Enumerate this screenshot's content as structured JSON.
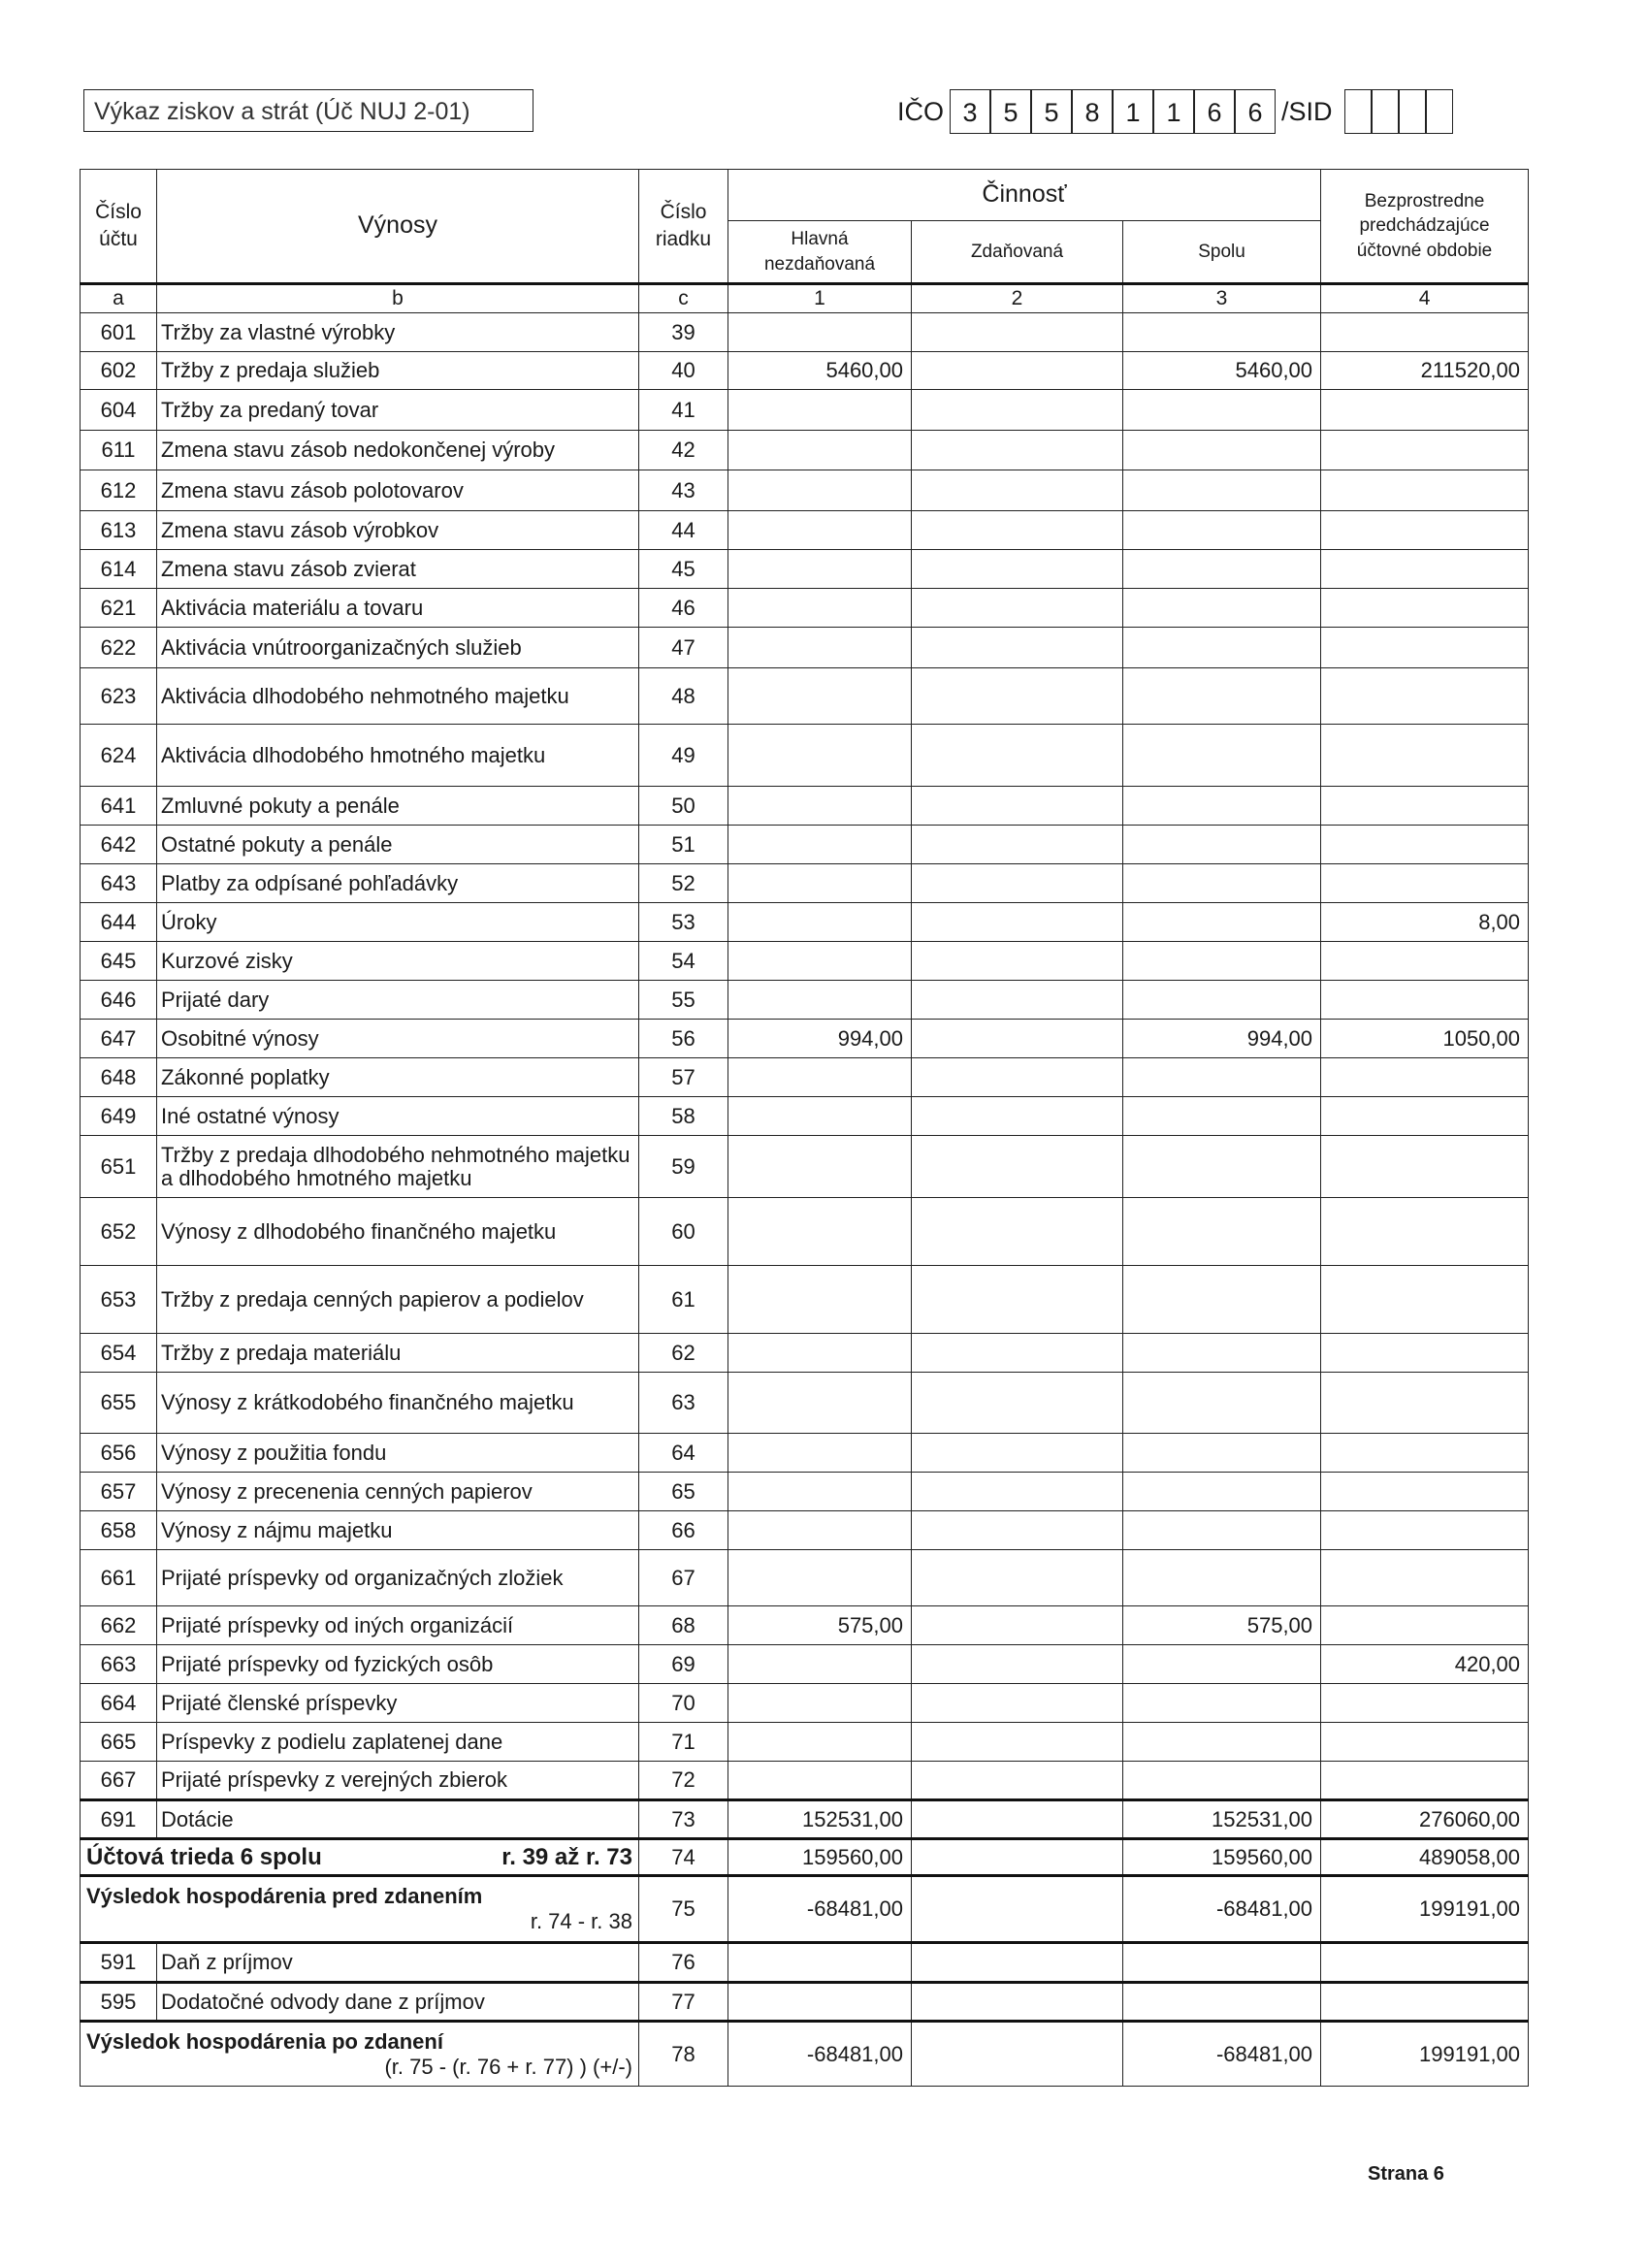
{
  "header": {
    "title": "Výkaz ziskov a strát (Úč NUJ 2-01)",
    "ico_label": "IČO",
    "ico_digits": [
      "3",
      "5",
      "5",
      "8",
      "1",
      "1",
      "6",
      "6"
    ],
    "sid_label": "/SID",
    "sid_digits": [
      "",
      "",
      "",
      ""
    ]
  },
  "table": {
    "headers": {
      "account": "Číslo účtu",
      "revenues": "Výnosy",
      "row_no": "Číslo riadku",
      "activity": "Činnosť",
      "main": "Hlavná nezdaňovaná",
      "taxed": "Zdaňovaná",
      "total": "Spolu",
      "previous": "Bezprostredne predchádzajúce účtovné obdobie"
    },
    "index_row": [
      "a",
      "b",
      "c",
      "1",
      "2",
      "3",
      "4"
    ],
    "rows": [
      {
        "acc": "601",
        "label": "Tržby za vlastné výrobky",
        "rn": "39",
        "c1": "",
        "c2": "",
        "c3": "",
        "c4": ""
      },
      {
        "acc": "602",
        "label": "Tržby z predaja služieb",
        "rn": "40",
        "c1": "5460,00",
        "c2": "",
        "c3": "5460,00",
        "c4": "211520,00"
      },
      {
        "acc": "604",
        "label": "Tržby za predaný tovar",
        "rn": "41",
        "c1": "",
        "c2": "",
        "c3": "",
        "c4": ""
      },
      {
        "acc": "611",
        "label": "Zmena stavu zásob nedokončenej výroby",
        "rn": "42",
        "c1": "",
        "c2": "",
        "c3": "",
        "c4": ""
      },
      {
        "acc": "612",
        "label": "Zmena stavu zásob polotovarov",
        "rn": "43",
        "c1": "",
        "c2": "",
        "c3": "",
        "c4": ""
      },
      {
        "acc": "613",
        "label": "Zmena stavu zásob výrobkov",
        "rn": "44",
        "c1": "",
        "c2": "",
        "c3": "",
        "c4": ""
      },
      {
        "acc": "614",
        "label": "Zmena stavu zásob zvierat",
        "rn": "45",
        "c1": "",
        "c2": "",
        "c3": "",
        "c4": ""
      },
      {
        "acc": "621",
        "label": "Aktivácia materiálu a tovaru",
        "rn": "46",
        "c1": "",
        "c2": "",
        "c3": "",
        "c4": ""
      },
      {
        "acc": "622",
        "label": "Aktivácia vnútroorganizačných služieb",
        "rn": "47",
        "c1": "",
        "c2": "",
        "c3": "",
        "c4": ""
      },
      {
        "acc": "623",
        "label": "Aktivácia dlhodobého nehmotného majetku",
        "rn": "48",
        "c1": "",
        "c2": "",
        "c3": "",
        "c4": ""
      },
      {
        "acc": "624",
        "label": "Aktivácia dlhodobého hmotného majetku",
        "rn": "49",
        "c1": "",
        "c2": "",
        "c3": "",
        "c4": ""
      },
      {
        "acc": "641",
        "label": "Zmluvné pokuty a penále",
        "rn": "50",
        "c1": "",
        "c2": "",
        "c3": "",
        "c4": ""
      },
      {
        "acc": "642",
        "label": "Ostatné pokuty a penále",
        "rn": "51",
        "c1": "",
        "c2": "",
        "c3": "",
        "c4": ""
      },
      {
        "acc": "643",
        "label": "Platby za odpísané pohľadávky",
        "rn": "52",
        "c1": "",
        "c2": "",
        "c3": "",
        "c4": ""
      },
      {
        "acc": "644",
        "label": "Úroky",
        "rn": "53",
        "c1": "",
        "c2": "",
        "c3": "",
        "c4": "8,00"
      },
      {
        "acc": "645",
        "label": "Kurzové zisky",
        "rn": "54",
        "c1": "",
        "c2": "",
        "c3": "",
        "c4": ""
      },
      {
        "acc": "646",
        "label": "Prijaté dary",
        "rn": "55",
        "c1": "",
        "c2": "",
        "c3": "",
        "c4": ""
      },
      {
        "acc": "647",
        "label": "Osobitné výnosy",
        "rn": "56",
        "c1": "994,00",
        "c2": "",
        "c3": "994,00",
        "c4": "1050,00"
      },
      {
        "acc": "648",
        "label": "Zákonné  poplatky",
        "rn": "57",
        "c1": "",
        "c2": "",
        "c3": "",
        "c4": ""
      },
      {
        "acc": "649",
        "label": "Iné ostatné výnosy",
        "rn": "58",
        "c1": "",
        "c2": "",
        "c3": "",
        "c4": ""
      },
      {
        "acc": "651",
        "label": "Tržby z predaja dlhodobého nehmotného majetku a dlhodobého hmotného majetku",
        "rn": "59",
        "c1": "",
        "c2": "",
        "c3": "",
        "c4": ""
      },
      {
        "acc": "652",
        "label": "Výnosy z dlhodobého finančného majetku",
        "rn": "60",
        "c1": "",
        "c2": "",
        "c3": "",
        "c4": ""
      },
      {
        "acc": "653",
        "label": "Tržby z predaja cenných papierov a podielov",
        "rn": "61",
        "c1": "",
        "c2": "",
        "c3": "",
        "c4": ""
      },
      {
        "acc": "654",
        "label": "Tržby z predaja materiálu",
        "rn": "62",
        "c1": "",
        "c2": "",
        "c3": "",
        "c4": ""
      },
      {
        "acc": "655",
        "label": "Výnosy z krátkodobého finančného majetku",
        "rn": "63",
        "c1": "",
        "c2": "",
        "c3": "",
        "c4": ""
      },
      {
        "acc": "656",
        "label": "Výnosy z použitia fondu",
        "rn": "64",
        "c1": "",
        "c2": "",
        "c3": "",
        "c4": ""
      },
      {
        "acc": "657",
        "label": "Výnosy z precenenia cenných papierov",
        "rn": "65",
        "c1": "",
        "c2": "",
        "c3": "",
        "c4": ""
      },
      {
        "acc": "658",
        "label": "Výnosy z nájmu majetku",
        "rn": "66",
        "c1": "",
        "c2": "",
        "c3": "",
        "c4": ""
      },
      {
        "acc": "661",
        "label": "Prijaté príspevky od organizačných zložiek",
        "rn": "67",
        "c1": "",
        "c2": "",
        "c3": "",
        "c4": ""
      },
      {
        "acc": "662",
        "label": "Prijaté príspevky od iných organizácií",
        "rn": "68",
        "c1": "575,00",
        "c2": "",
        "c3": "575,00",
        "c4": ""
      },
      {
        "acc": "663",
        "label": "Prijaté príspevky od fyzických osôb",
        "rn": "69",
        "c1": "",
        "c2": "",
        "c3": "",
        "c4": "420,00"
      },
      {
        "acc": "664",
        "label": "Prijaté členské príspevky",
        "rn": "70",
        "c1": "",
        "c2": "",
        "c3": "",
        "c4": ""
      },
      {
        "acc": "665",
        "label": "Príspevky z podielu zaplatenej dane",
        "rn": "71",
        "c1": "",
        "c2": "",
        "c3": "",
        "c4": ""
      },
      {
        "acc": "667",
        "label": "Prijaté príspevky z verejných zbierok",
        "rn": "72",
        "c1": "",
        "c2": "",
        "c3": "",
        "c4": ""
      },
      {
        "acc": "691",
        "label": "Dotácie",
        "rn": "73",
        "c1": "152531,00",
        "c2": "",
        "c3": "152531,00",
        "c4": "276060,00"
      },
      {
        "type": "sum",
        "label": "Účtová trieda 6 spolu",
        "ref": "r. 39 až r. 73",
        "rn": "74",
        "c1": "159560,00",
        "c2": "",
        "c3": "159560,00",
        "c4": "489058,00"
      },
      {
        "type": "two",
        "label": "Výsledok hospodárenia pred zdanením",
        "ref": "r. 74 - r. 38",
        "rn": "75",
        "c1": "-68481,00",
        "c2": "",
        "c3": "-68481,00",
        "c4": "199191,00"
      },
      {
        "acc": "591",
        "label": "Daň z príjmov",
        "rn": "76",
        "c1": "",
        "c2": "",
        "c3": "",
        "c4": ""
      },
      {
        "acc": "595",
        "label": "Dodatočné odvody dane z príjmov",
        "rn": "77",
        "c1": "",
        "c2": "",
        "c3": "",
        "c4": ""
      },
      {
        "type": "two",
        "label": "Výsledok hospodárenia po zdanení",
        "ref": "(r. 75 - (r. 76 + r. 77) ) (+/-)",
        "rn": "78",
        "c1": "-68481,00",
        "c2": "",
        "c3": "-68481,00",
        "c4": "199191,00"
      }
    ]
  },
  "footer": {
    "page": "Strana 6"
  }
}
